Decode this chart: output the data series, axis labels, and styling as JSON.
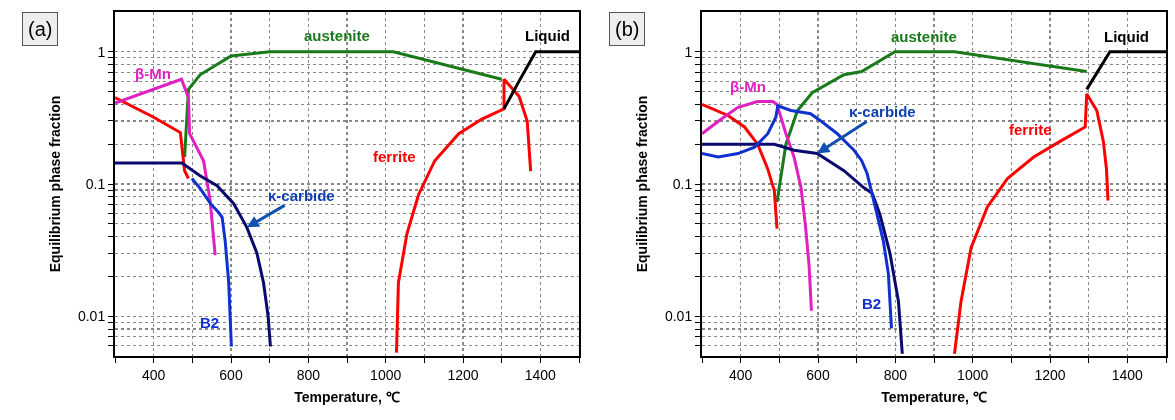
{
  "chart_data": [
    {
      "type": "line",
      "title": "(a)",
      "xlabel": "Temperature, ℃",
      "ylabel": "Equilibrium phase fraction",
      "log": "y",
      "grid": true,
      "line_style": "solid",
      "marker": "none",
      "xlim": [
        300,
        1500
      ],
      "xticks": [
        {
          "value": 300,
          "label": null
        },
        400,
        {
          "value": 500,
          "label": null
        },
        600,
        {
          "value": 700,
          "label": null
        },
        800,
        {
          "value": 900,
          "label": null
        },
        1000,
        {
          "value": 1100,
          "label": null
        },
        1200,
        {
          "value": 1300,
          "label": null
        },
        1400,
        {
          "value": 1500,
          "label": null
        }
      ],
      "ylim": [
        0.005,
        2
      ],
      "yticks": [
        {
          "value": 0.006,
          "label": null
        },
        {
          "value": 0.007,
          "label": null
        },
        {
          "value": 0.008,
          "label": null
        },
        {
          "value": 0.009,
          "label": null
        },
        0.01,
        {
          "value": 0.02,
          "label": null
        },
        {
          "value": 0.03,
          "label": null
        },
        {
          "value": 0.04,
          "label": null
        },
        {
          "value": 0.05,
          "label": null
        },
        {
          "value": 0.06,
          "label": null
        },
        {
          "value": 0.07,
          "label": null
        },
        {
          "value": 0.08,
          "label": null
        },
        {
          "value": 0.09,
          "label": null
        },
        0.1,
        {
          "value": 0.2,
          "label": null
        },
        {
          "value": 0.3,
          "label": null
        },
        {
          "value": 0.4,
          "label": null
        },
        {
          "value": 0.5,
          "label": null
        },
        {
          "value": 0.6,
          "label": null
        },
        {
          "value": 0.7,
          "label": null
        },
        {
          "value": 0.8,
          "label": null
        },
        {
          "value": 0.9,
          "label": null
        },
        1
      ],
      "series": [
        {
          "name": "austenite",
          "color": "#1a7a1a",
          "x": [
            480,
            490,
            520,
            600,
            700,
            1020,
            1300
          ],
          "values": [
            0.16,
            0.52,
            0.67,
            0.93,
            1.0,
            1.0,
            0.62
          ]
        },
        {
          "color": "#ff0000",
          "x": [
            300,
            400,
            469,
            480,
            490
          ],
          "values": [
            0.45,
            0.32,
            0.245,
            0.126,
            0.11
          ]
        },
        {
          "name": "ferrite",
          "color": "#ff0000",
          "x": [
            1028,
            1033,
            1055,
            1085,
            1127,
            1189,
            1249,
            1306,
            1306,
            1345,
            1366,
            1375
          ],
          "values": [
            0.0053,
            0.018,
            0.042,
            0.083,
            0.15,
            0.24,
            0.31,
            0.37,
            0.62,
            0.46,
            0.3,
            0.125
          ]
        },
        {
          "name": "Liquid",
          "color": "#000000",
          "x": [
            1306,
            1345,
            1388,
            1500
          ],
          "values": [
            0.37,
            0.6,
            1.0,
            1.0
          ]
        },
        {
          "name": "β-Mn",
          "color": "#e020c0",
          "x": [
            300,
            472,
            490,
            493,
            529,
            546,
            559
          ],
          "values": [
            0.41,
            0.62,
            0.45,
            0.24,
            0.15,
            0.075,
            0.029
          ]
        },
        {
          "name": "κ-carbide",
          "color": "#0a0a6e",
          "x": [
            300,
            473,
            521,
            564,
            607,
            641,
            667,
            684,
            696,
            702
          ],
          "values": [
            0.144,
            0.144,
            0.115,
            0.097,
            0.071,
            0.047,
            0.03,
            0.018,
            0.01,
            0.0059
          ]
        },
        {
          "name": "B2",
          "color": "#1030d0",
          "x": [
            499,
            521,
            547,
            568,
            577,
            585,
            594,
            601
          ],
          "values": [
            0.11,
            0.092,
            0.071,
            0.061,
            0.056,
            0.037,
            0.018,
            0.0059
          ]
        }
      ]
    },
    {
      "type": "line",
      "title": "(b)",
      "xlabel": "Temperature, ℃",
      "ylabel": "Equilibrium phase fraction",
      "log": "y",
      "grid": true,
      "line_style": "solid",
      "marker": "none",
      "xlim": [
        300,
        1500
      ],
      "xticks": [
        {
          "value": 300,
          "label": null
        },
        400,
        {
          "value": 500,
          "label": null
        },
        600,
        {
          "value": 700,
          "label": null
        },
        800,
        {
          "value": 900,
          "label": null
        },
        1000,
        {
          "value": 1100,
          "label": null
        },
        1200,
        {
          "value": 1300,
          "label": null
        },
        1400,
        {
          "value": 1500,
          "label": null
        }
      ],
      "ylim": [
        0.005,
        2
      ],
      "yticks": [
        {
          "value": 0.006,
          "label": null
        },
        {
          "value": 0.007,
          "label": null
        },
        {
          "value": 0.008,
          "label": null
        },
        {
          "value": 0.009,
          "label": null
        },
        0.01,
        {
          "value": 0.02,
          "label": null
        },
        {
          "value": 0.03,
          "label": null
        },
        {
          "value": 0.04,
          "label": null
        },
        {
          "value": 0.05,
          "label": null
        },
        {
          "value": 0.06,
          "label": null
        },
        {
          "value": 0.07,
          "label": null
        },
        {
          "value": 0.08,
          "label": null
        },
        {
          "value": 0.09,
          "label": null
        },
        0.1,
        {
          "value": 0.2,
          "label": null
        },
        {
          "value": 0.3,
          "label": null
        },
        {
          "value": 0.4,
          "label": null
        },
        {
          "value": 0.5,
          "label": null
        },
        {
          "value": 0.6,
          "label": null
        },
        {
          "value": 0.7,
          "label": null
        },
        {
          "value": 0.8,
          "label": null
        },
        {
          "value": 0.9,
          "label": null
        },
        1
      ],
      "series": [
        {
          "name": "austenite",
          "color": "#1a7a1a",
          "x": [
            494,
            517,
            547,
            585,
            667,
            713,
            799,
            953,
            1295
          ],
          "values": [
            0.073,
            0.2,
            0.36,
            0.49,
            0.67,
            0.71,
            1.0,
            1.0,
            0.71
          ]
        },
        {
          "color": "#ff0000",
          "x": [
            300,
            367,
            410,
            444,
            470,
            487,
            494
          ],
          "values": [
            0.4,
            0.33,
            0.27,
            0.2,
            0.13,
            0.089,
            0.046
          ]
        },
        {
          "name": "ferrite",
          "color": "#ff0000",
          "x": [
            953,
            970,
            996,
            1038,
            1090,
            1158,
            1226,
            1291,
            1295,
            1321,
            1338,
            1346,
            1350
          ],
          "values": [
            0.0052,
            0.013,
            0.033,
            0.067,
            0.11,
            0.16,
            0.21,
            0.27,
            0.48,
            0.36,
            0.21,
            0.13,
            0.075
          ]
        },
        {
          "name": "Liquid",
          "color": "#000000",
          "x": [
            1295,
            1355,
            1500
          ],
          "values": [
            0.52,
            1.0,
            1.0
          ]
        },
        {
          "name": "β-Mn",
          "color": "#e020c0",
          "x": [
            300,
            350,
            393,
            444,
            483,
            494,
            517,
            538,
            556,
            568,
            577,
            583
          ],
          "values": [
            0.24,
            0.31,
            0.38,
            0.42,
            0.42,
            0.4,
            0.24,
            0.16,
            0.094,
            0.047,
            0.024,
            0.011
          ]
        },
        {
          "name": "κ-carbide",
          "color": "#0a0a6e",
          "x": [
            300,
            487,
            538,
            598,
            667,
            718,
            740,
            760,
            786,
            808,
            818
          ],
          "values": [
            0.2,
            0.2,
            0.18,
            0.17,
            0.126,
            0.094,
            0.085,
            0.059,
            0.03,
            0.013,
            0.0052
          ]
        },
        {
          "name": "B2",
          "color": "#1030d0",
          "x": [
            300,
            342,
            393,
            436,
            470,
            491,
            496,
            530,
            581,
            607,
            650,
            693,
            713,
            727,
            748,
            769,
            782,
            790
          ],
          "values": [
            0.17,
            0.16,
            0.17,
            0.19,
            0.24,
            0.32,
            0.39,
            0.36,
            0.34,
            0.3,
            0.24,
            0.18,
            0.15,
            0.12,
            0.067,
            0.037,
            0.021,
            0.0081
          ]
        }
      ]
    }
  ]
}
